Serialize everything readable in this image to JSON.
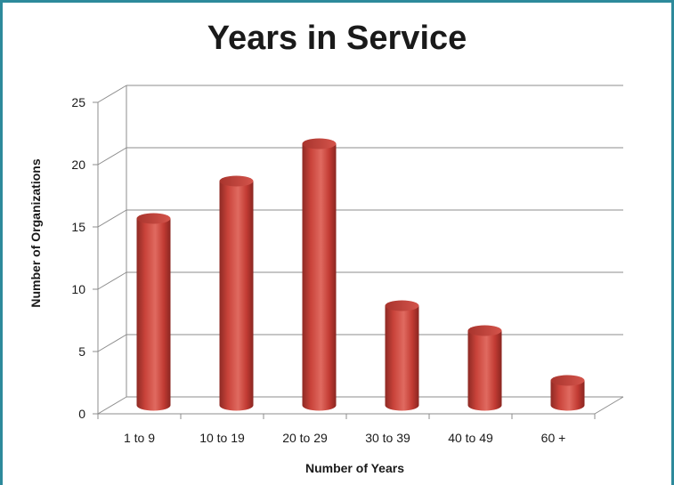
{
  "chart_data": {
    "type": "bar",
    "title": "Years in Service",
    "xlabel": "Number of Years",
    "ylabel": "Number of Organizations",
    "categories": [
      "1 to 9",
      "10 to 19",
      "20 to 29",
      "30 to 39",
      "40 to 49",
      "60 +"
    ],
    "values": [
      15,
      18,
      21,
      8,
      6,
      2
    ],
    "ylim": [
      0,
      25
    ],
    "yticks": [
      "0",
      "5",
      "10",
      "15",
      "20",
      "25"
    ],
    "grid": true,
    "style": "3d-cylinder",
    "colors": {
      "bar": "#c0392f",
      "frame": "#2d8a9b",
      "grid": "#8c8c8c"
    }
  }
}
